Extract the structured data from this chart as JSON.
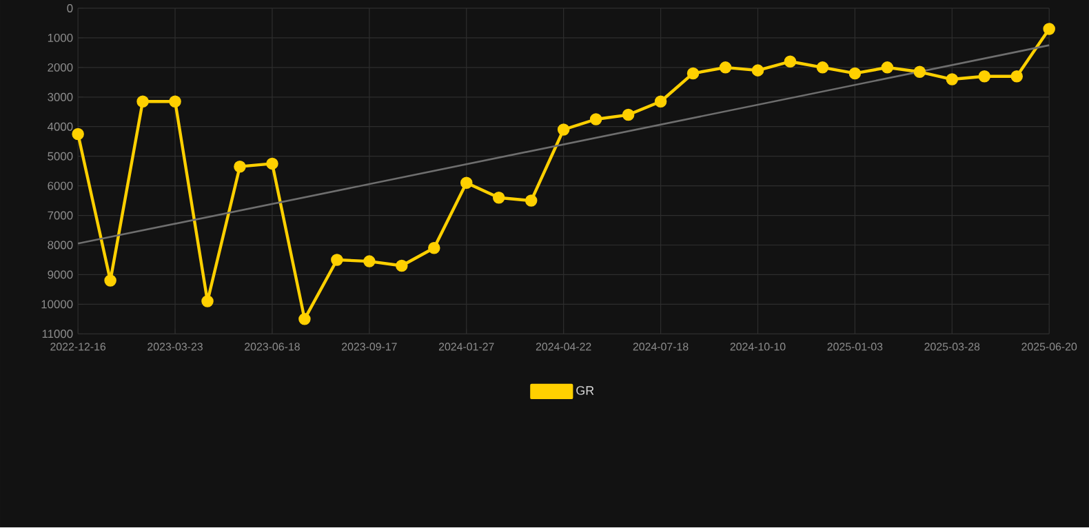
{
  "chart_data": {
    "type": "line",
    "categories": [
      "2022-12-16",
      null,
      null,
      "2023-03-23",
      null,
      null,
      "2023-06-18",
      null,
      null,
      "2023-09-17",
      null,
      null,
      "2024-01-27",
      null,
      null,
      "2024-04-22",
      null,
      null,
      "2024-07-18",
      null,
      null,
      "2024-10-10",
      null,
      null,
      "2025-01-03",
      null,
      null,
      "2025-03-28",
      null,
      null,
      "2025-06-20"
    ],
    "series": [
      {
        "name": "GR",
        "color": "#ffd000",
        "marker": "circle",
        "values": [
          4250,
          9200,
          3150,
          3150,
          9900,
          5350,
          5250,
          10500,
          8500,
          8550,
          8700,
          8100,
          5900,
          6400,
          6500,
          4100,
          3750,
          3600,
          3150,
          2200,
          2000,
          2100,
          1800,
          2000,
          2200,
          2000,
          2150,
          2400,
          2300,
          2300,
          700
        ]
      },
      {
        "color": "#6e6e6e",
        "marker": "none",
        "values": [
          7950,
          null,
          null,
          null,
          null,
          null,
          null,
          null,
          null,
          null,
          null,
          null,
          null,
          null,
          null,
          null,
          null,
          null,
          null,
          null,
          null,
          null,
          null,
          null,
          null,
          null,
          null,
          null,
          null,
          null,
          1250
        ]
      }
    ],
    "ylim": [
      11000,
      0
    ],
    "yticks": [
      0,
      1000,
      2000,
      3000,
      4000,
      5000,
      6000,
      7000,
      8000,
      9000,
      10000,
      11000
    ],
    "grid": true,
    "legend": "bottom",
    "line_style": "solid"
  }
}
